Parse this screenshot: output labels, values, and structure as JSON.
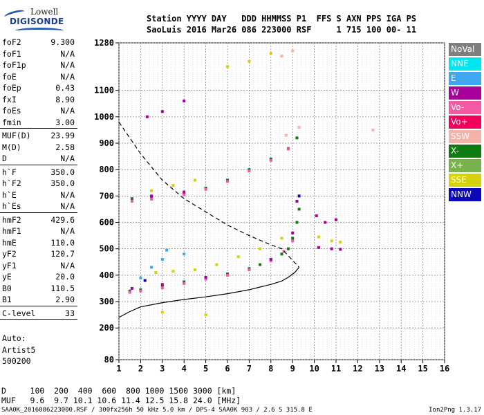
{
  "logo": {
    "line1": "Lowell",
    "line2": "DIGISONDE"
  },
  "header": {
    "line1": "Station YYYY DAY   DDD HHMMSS P1  FFS S AXN PPS IGA PS",
    "line2": "SaoLuis 2016 Mar26 086 223000 RSF     1 715 100 00- 11"
  },
  "params": [
    {
      "label": "foF2",
      "value": "9.300"
    },
    {
      "label": "foF1",
      "value": "N/A"
    },
    {
      "label": "foF1p",
      "value": "N/A"
    },
    {
      "label": "foE",
      "value": "N/A"
    },
    {
      "label": "foEp",
      "value": "0.43"
    },
    {
      "label": "fxI",
      "value": "8.90"
    },
    {
      "label": "foEs",
      "value": "N/A"
    },
    {
      "label": "fmin",
      "value": "3.00"
    },
    {
      "sep": true
    },
    {
      "label": "MUF(D)",
      "value": "23.99"
    },
    {
      "label": "M(D)",
      "value": "2.58"
    },
    {
      "label": "D",
      "value": "N/A"
    },
    {
      "sep": true
    },
    {
      "label": "h`F",
      "value": "350.0"
    },
    {
      "label": "h`F2",
      "value": "350.0"
    },
    {
      "label": "h`E",
      "value": "N/A"
    },
    {
      "label": "h`Es",
      "value": "N/A"
    },
    {
      "sep": true
    },
    {
      "label": "hmF2",
      "value": "429.6"
    },
    {
      "label": "hmF1",
      "value": "N/A"
    },
    {
      "label": "hmE",
      "value": "110.0"
    },
    {
      "label": "yF2",
      "value": "120.7"
    },
    {
      "label": "yF1",
      "value": "N/A"
    },
    {
      "label": "yE",
      "value": "20.0"
    },
    {
      "label": "B0",
      "value": "110.5"
    },
    {
      "label": "B1",
      "value": "2.90"
    },
    {
      "sep": true
    },
    {
      "label": "C-level",
      "value": "33"
    },
    {
      "sep": true
    }
  ],
  "autoscale": {
    "line1": "Auto:",
    "line2": "Artist5",
    "line3": "500200"
  },
  "legend": [
    {
      "label": "NoVal",
      "bg": "#7f7f7f",
      "fg": "#ffffff"
    },
    {
      "label": "NNE",
      "bg": "#00e5ee",
      "fg": "#ffffff"
    },
    {
      "label": "E",
      "bg": "#3fa6f2",
      "fg": "#ffffff"
    },
    {
      "label": "W",
      "bg": "#a8009a",
      "fg": "#ffffff"
    },
    {
      "label": "Vo-",
      "bg": "#f25aa6",
      "fg": "#ffffff"
    },
    {
      "label": "Vo+",
      "bg": "#f0005a",
      "fg": "#ffffff"
    },
    {
      "label": "SSW",
      "bg": "#f5b2a9",
      "fg": "#ffffff"
    },
    {
      "label": "X-",
      "bg": "#0f7c10",
      "fg": "#ffffff"
    },
    {
      "label": "X+",
      "bg": "#77b24e",
      "fg": "#ffffff"
    },
    {
      "label": "SSE",
      "bg": "#d6d20a",
      "fg": "#ffffff"
    },
    {
      "label": "NNW",
      "bg": "#0a08b8",
      "fg": "#ffffff"
    }
  ],
  "footer": {
    "line1": "D     100  200  400  600  800 1000 1500 3000 [km]",
    "line2": "MUF   9.6  9.7 10.1 10.6 11.4 12.5 15.8 24.0 [MHz]",
    "filename": "SAA0K_2016086223000.RSF / 300fx256h 50 kHz 5.0 km / DPS-4 SAA0K 903 / 2.6 S 315.8 E",
    "version": "Ion2Png 1.3.17"
  },
  "chart_data": {
    "type": "scatter",
    "xlim": [
      1,
      16
    ],
    "ylim": [
      80,
      1280
    ],
    "x_ticks": [
      1,
      2,
      3,
      4,
      5,
      6,
      7,
      8,
      9,
      10,
      11,
      12,
      13,
      14,
      15,
      16
    ],
    "y_ticks": [
      80,
      200,
      300,
      400,
      500,
      600,
      700,
      800,
      900,
      1000,
      1100,
      1280
    ],
    "grid": true,
    "layers": [
      {
        "label": "X-",
        "color": "#0f7c10",
        "points": [
          [
            1.5,
            340
          ],
          [
            2,
            345
          ],
          [
            3,
            360
          ],
          [
            4,
            375
          ],
          [
            5,
            390
          ],
          [
            6,
            405
          ],
          [
            7,
            425
          ],
          [
            7.5,
            440
          ],
          [
            8,
            460
          ],
          [
            8.5,
            480
          ],
          [
            8.8,
            500
          ],
          [
            9,
            540
          ],
          [
            9.2,
            600
          ],
          [
            9.3,
            650
          ],
          [
            1.6,
            690
          ],
          [
            2.5,
            695
          ],
          [
            4,
            710
          ],
          [
            5,
            730
          ],
          [
            6,
            760
          ],
          [
            7,
            800
          ],
          [
            8,
            840
          ],
          [
            8.8,
            880
          ],
          [
            9.2,
            920
          ]
        ]
      },
      {
        "label": "Vo-",
        "color": "#f25aa6",
        "points": [
          [
            1.5,
            335
          ],
          [
            2,
            340
          ],
          [
            3,
            352
          ],
          [
            4,
            368
          ],
          [
            5,
            385
          ],
          [
            6,
            400
          ],
          [
            7,
            420
          ],
          [
            8,
            455
          ],
          [
            8.6,
            490
          ],
          [
            9,
            530
          ],
          [
            1.6,
            680
          ],
          [
            2.5,
            688
          ],
          [
            4,
            705
          ],
          [
            5,
            725
          ],
          [
            6,
            755
          ],
          [
            7,
            795
          ],
          [
            8,
            835
          ],
          [
            8.8,
            878
          ]
        ]
      },
      {
        "label": "W",
        "color": "#a8009a",
        "points": [
          [
            1.6,
            350
          ],
          [
            3,
            365
          ],
          [
            5,
            392
          ],
          [
            8,
            460
          ],
          [
            9,
            560
          ],
          [
            9.2,
            680
          ],
          [
            10.1,
            625
          ],
          [
            10.5,
            600
          ],
          [
            11,
            610
          ],
          [
            10.2,
            505
          ],
          [
            10.8,
            500
          ],
          [
            11.2,
            498
          ],
          [
            2.5,
            700
          ],
          [
            4,
            715
          ],
          [
            2.3,
            1000
          ],
          [
            3,
            1020
          ],
          [
            4,
            1060
          ]
        ]
      },
      {
        "label": "SSE",
        "color": "#d6d20a",
        "points": [
          [
            2.7,
            410
          ],
          [
            3.5,
            415
          ],
          [
            4.5,
            420
          ],
          [
            5.5,
            440
          ],
          [
            6.5,
            470
          ],
          [
            7.5,
            500
          ],
          [
            8.5,
            540
          ],
          [
            10.2,
            545
          ],
          [
            10.8,
            530
          ],
          [
            11.2,
            525
          ],
          [
            2.5,
            720
          ],
          [
            3.5,
            740
          ],
          [
            4.5,
            760
          ],
          [
            6,
            1190
          ],
          [
            7,
            1210
          ],
          [
            8,
            1240
          ],
          [
            3,
            260
          ],
          [
            5,
            250
          ]
        ]
      },
      {
        "label": "E",
        "color": "#3fa6f2",
        "points": [
          [
            2,
            390
          ],
          [
            2.5,
            430
          ],
          [
            3,
            460
          ],
          [
            3.2,
            495
          ],
          [
            4,
            480
          ]
        ]
      },
      {
        "label": "SSW",
        "color": "#f5b2a9",
        "points": [
          [
            8.5,
            1230
          ],
          [
            9,
            1250
          ],
          [
            9.3,
            960
          ],
          [
            8.7,
            930
          ],
          [
            12.7,
            950
          ]
        ]
      },
      {
        "label": "NNW",
        "color": "#0a08b8",
        "points": [
          [
            2.2,
            380
          ],
          [
            9.3,
            700
          ]
        ]
      }
    ],
    "lines": [
      {
        "label": "true height profile",
        "style": "solid",
        "color": "#000000",
        "points": [
          [
            1,
            240
          ],
          [
            1.5,
            262
          ],
          [
            2,
            280
          ],
          [
            3,
            296
          ],
          [
            4,
            308
          ],
          [
            5,
            318
          ],
          [
            6,
            330
          ],
          [
            7,
            345
          ],
          [
            7.5,
            355
          ],
          [
            8,
            365
          ],
          [
            8.5,
            378
          ],
          [
            8.8,
            392
          ],
          [
            9.1,
            410
          ],
          [
            9.3,
            430
          ]
        ]
      },
      {
        "label": "MUF scale curve",
        "style": "dashed",
        "color": "#000000",
        "points": [
          [
            1,
            980
          ],
          [
            1.5,
            920
          ],
          [
            2,
            860
          ],
          [
            3,
            760
          ],
          [
            4,
            690
          ],
          [
            5,
            640
          ],
          [
            6,
            590
          ],
          [
            7,
            550
          ],
          [
            8,
            515
          ],
          [
            8.5,
            500
          ],
          [
            9.3,
            430
          ]
        ]
      }
    ]
  }
}
